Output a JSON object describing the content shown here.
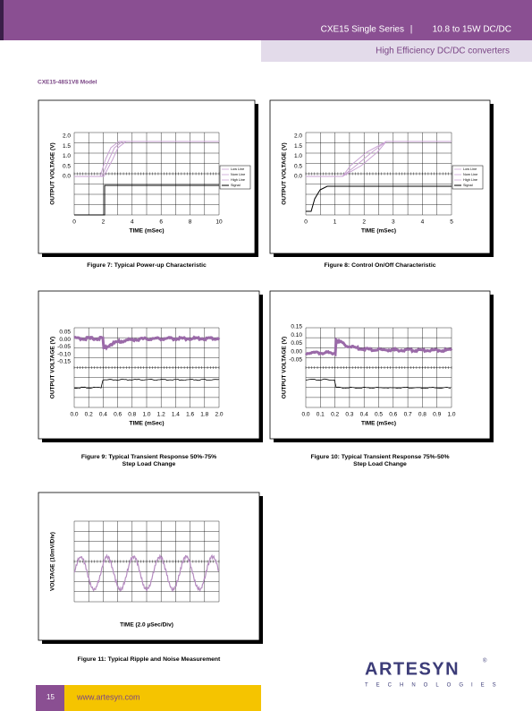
{
  "header": {
    "series": "CXE15 Single Series",
    "separator": "|",
    "range": "10.8 to 15W DC/DC",
    "subtitle": "High Efficiency DC/DC converters"
  },
  "model": "CXE15-48S1V8 Model",
  "figures": [
    {
      "ylabel": "OUTPUT VOLTAGE (V)",
      "xlabel": "TIME (mSec)",
      "yticks": [
        "2.0",
        "1.5",
        "1.0",
        "0.5",
        "0.0"
      ],
      "xticks": [
        "0",
        "2",
        "4",
        "6",
        "8",
        "10"
      ],
      "legend": [
        "Low Line",
        "Nom Line",
        "High Line",
        "Signal"
      ],
      "caption": [
        "Figure 7: Typical Power-up Characteristic"
      ]
    },
    {
      "ylabel": "OUTPUT VOLTAGE (V)",
      "xlabel": "TIME (mSec)",
      "yticks": [
        "2.0",
        "1.5",
        "1.0",
        "0.5",
        "0.0"
      ],
      "xticks": [
        "0",
        "1",
        "2",
        "3",
        "4",
        "5"
      ],
      "legend": [
        "Low Line",
        "Nom Line",
        "High Line",
        "Signal"
      ],
      "caption": [
        "Figure 8: Control On/Off Characteristic"
      ]
    },
    {
      "ylabel": "OUTPUT VOLTAGE (V)",
      "xlabel": "TIME (mSec)",
      "yticks": [
        "0.05",
        "0.00",
        "-0.05",
        "-0.10",
        "-0.15"
      ],
      "xticks": [
        "0.0",
        "0.2",
        "0.4",
        "0.6",
        "0.8",
        "1.0",
        "1.2",
        "1.4",
        "1.6",
        "1.8",
        "2.0"
      ],
      "caption": [
        "Figure 9: Typical Transient Response 50%-75%",
        "Step Load Change"
      ]
    },
    {
      "ylabel": "OUTPUT VOLTAGE (V)",
      "xlabel": "TIME (mSec)",
      "yticks": [
        "0.15",
        "0.10",
        "0.05",
        "0.00",
        "-0.05"
      ],
      "xticks": [
        "0.0",
        "0.1",
        "0.2",
        "0.3",
        "0.4",
        "0.5",
        "0.6",
        "0.7",
        "0.8",
        "0.9",
        "1.0"
      ],
      "caption": [
        "Figure 10: Typical Transient Response 75%-50%",
        "Step Load Change"
      ]
    },
    {
      "ylabel": "VOLTAGE (10mV/Div)",
      "xlabel": "TIME (2.0 µSec/Div)",
      "caption": [
        "Figure 11: Typical Ripple and Noise Measurement"
      ]
    }
  ],
  "footer": {
    "page": "15",
    "url": "www.artesyn.com",
    "logo": "ARTESYN",
    "logo_mark": "®",
    "tagline": "TECHNOLOGIES"
  }
}
